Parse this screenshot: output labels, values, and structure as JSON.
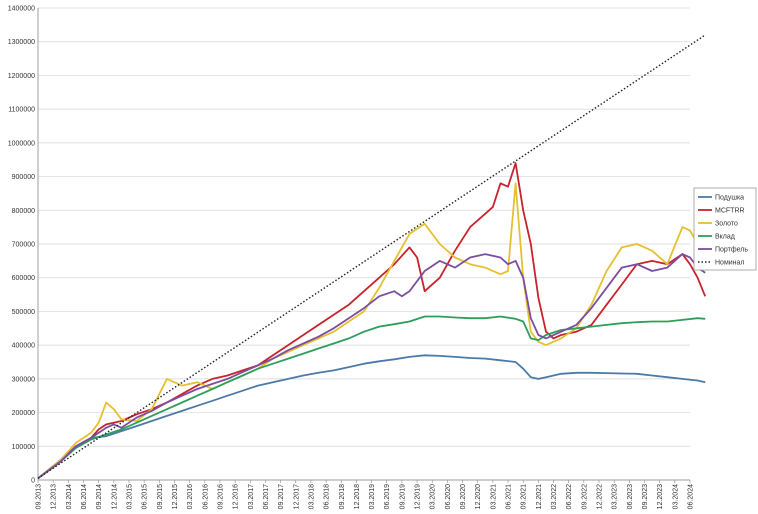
{
  "chart_data": {
    "type": "line",
    "title": "",
    "xlabel": "",
    "ylabel": "",
    "ylim": [
      0,
      1400000
    ],
    "y_ticks": [
      "0",
      "100000",
      "200000",
      "300000",
      "400000",
      "500000",
      "600000",
      "700000",
      "800000",
      "900000",
      "1000000",
      "1100000",
      "1200000",
      "1300000",
      "1400000"
    ],
    "x_ticks": [
      "09.2013",
      "12.2013",
      "03.2014",
      "06.2014",
      "09.2014",
      "12.2014",
      "03.2015",
      "06.2015",
      "09.2015",
      "12.2015",
      "03.2016",
      "06.2016",
      "09.2016",
      "12.2016",
      "03.2017",
      "06.2017",
      "09.2017",
      "12.2017",
      "03.2018",
      "06.2018",
      "09.2018",
      "12.2018",
      "03.2019",
      "06.2019",
      "09.2019",
      "12.2019",
      "03.2020",
      "06.2020",
      "09.2020",
      "12.2020",
      "03.2021",
      "06.2021",
      "09.2021",
      "12.2021",
      "03.2022",
      "06.2022",
      "09.2022",
      "12.2022",
      "03.2023",
      "06.2023",
      "09.2023",
      "12.2023",
      "03.2024",
      "06.2024"
    ],
    "grid": "horizontal",
    "legend_position": "right",
    "series": [
      {
        "name": "Подушка",
        "color": "#4a7ba7",
        "style": "solid",
        "points": [
          [
            0,
            5000
          ],
          [
            3,
            60000
          ],
          [
            5,
            100000
          ],
          [
            7,
            125000
          ],
          [
            9,
            130000
          ],
          [
            11,
            145000
          ],
          [
            13,
            160000
          ],
          [
            15,
            175000
          ],
          [
            17,
            190000
          ],
          [
            19,
            205000
          ],
          [
            21,
            220000
          ],
          [
            23,
            235000
          ],
          [
            25,
            250000
          ],
          [
            27,
            265000
          ],
          [
            29,
            280000
          ],
          [
            31,
            290000
          ],
          [
            33,
            300000
          ],
          [
            35,
            310000
          ],
          [
            37,
            318000
          ],
          [
            39,
            325000
          ],
          [
            41,
            335000
          ],
          [
            43,
            345000
          ],
          [
            45,
            352000
          ],
          [
            47,
            358000
          ],
          [
            49,
            365000
          ],
          [
            51,
            370000
          ],
          [
            53,
            368000
          ],
          [
            55,
            365000
          ],
          [
            57,
            362000
          ],
          [
            59,
            360000
          ],
          [
            61,
            355000
          ],
          [
            63,
            350000
          ],
          [
            64,
            330000
          ],
          [
            65,
            305000
          ],
          [
            66,
            300000
          ],
          [
            67,
            305000
          ],
          [
            69,
            315000
          ],
          [
            71,
            318000
          ],
          [
            73,
            318000
          ],
          [
            75,
            317000
          ],
          [
            77,
            316000
          ],
          [
            79,
            315000
          ],
          [
            81,
            310000
          ],
          [
            83,
            305000
          ],
          [
            85,
            300000
          ],
          [
            87,
            295000
          ],
          [
            88,
            290000
          ]
        ]
      },
      {
        "name": "MCFTRR",
        "color": "#c8232c",
        "style": "solid",
        "points": [
          [
            0,
            5000
          ],
          [
            3,
            55000
          ],
          [
            5,
            100000
          ],
          [
            7,
            125000
          ],
          [
            8,
            150000
          ],
          [
            9,
            165000
          ],
          [
            11,
            175000
          ],
          [
            13,
            195000
          ],
          [
            15,
            210000
          ],
          [
            17,
            230000
          ],
          [
            19,
            255000
          ],
          [
            21,
            280000
          ],
          [
            23,
            300000
          ],
          [
            25,
            310000
          ],
          [
            27,
            325000
          ],
          [
            29,
            340000
          ],
          [
            31,
            370000
          ],
          [
            33,
            400000
          ],
          [
            35,
            430000
          ],
          [
            37,
            460000
          ],
          [
            39,
            490000
          ],
          [
            41,
            520000
          ],
          [
            43,
            560000
          ],
          [
            45,
            600000
          ],
          [
            47,
            640000
          ],
          [
            49,
            690000
          ],
          [
            50,
            660000
          ],
          [
            51,
            560000
          ],
          [
            53,
            600000
          ],
          [
            55,
            680000
          ],
          [
            57,
            750000
          ],
          [
            59,
            790000
          ],
          [
            60,
            810000
          ],
          [
            61,
            880000
          ],
          [
            62,
            870000
          ],
          [
            63,
            940000
          ],
          [
            64,
            800000
          ],
          [
            65,
            700000
          ],
          [
            66,
            540000
          ],
          [
            67,
            440000
          ],
          [
            68,
            420000
          ],
          [
            69,
            430000
          ],
          [
            71,
            440000
          ],
          [
            73,
            460000
          ],
          [
            75,
            520000
          ],
          [
            77,
            580000
          ],
          [
            79,
            640000
          ],
          [
            81,
            650000
          ],
          [
            83,
            640000
          ],
          [
            85,
            670000
          ],
          [
            86,
            640000
          ],
          [
            87,
            600000
          ],
          [
            88,
            545000
          ]
        ]
      },
      {
        "name": "Золото",
        "color": "#e6c02e",
        "style": "solid",
        "points": [
          [
            0,
            5000
          ],
          [
            3,
            60000
          ],
          [
            5,
            110000
          ],
          [
            7,
            140000
          ],
          [
            8,
            170000
          ],
          [
            9,
            230000
          ],
          [
            10,
            210000
          ],
          [
            11,
            180000
          ],
          [
            13,
            175000
          ],
          [
            15,
            210000
          ],
          [
            17,
            300000
          ],
          [
            19,
            280000
          ],
          [
            21,
            290000
          ],
          [
            23,
            270000
          ],
          [
            25,
            290000
          ],
          [
            27,
            310000
          ],
          [
            29,
            330000
          ],
          [
            31,
            360000
          ],
          [
            33,
            380000
          ],
          [
            35,
            400000
          ],
          [
            37,
            420000
          ],
          [
            39,
            440000
          ],
          [
            41,
            470000
          ],
          [
            43,
            500000
          ],
          [
            45,
            570000
          ],
          [
            47,
            650000
          ],
          [
            49,
            730000
          ],
          [
            51,
            760000
          ],
          [
            53,
            700000
          ],
          [
            55,
            660000
          ],
          [
            57,
            640000
          ],
          [
            59,
            630000
          ],
          [
            61,
            610000
          ],
          [
            62,
            620000
          ],
          [
            63,
            880000
          ],
          [
            64,
            600000
          ],
          [
            65,
            440000
          ],
          [
            66,
            410000
          ],
          [
            67,
            400000
          ],
          [
            69,
            420000
          ],
          [
            71,
            450000
          ],
          [
            73,
            520000
          ],
          [
            75,
            620000
          ],
          [
            77,
            690000
          ],
          [
            79,
            700000
          ],
          [
            81,
            680000
          ],
          [
            83,
            640000
          ],
          [
            85,
            750000
          ],
          [
            86,
            740000
          ],
          [
            87,
            700000
          ],
          [
            88,
            730000
          ]
        ]
      },
      {
        "name": "Вклад",
        "color": "#2e9e5b",
        "style": "solid",
        "points": [
          [
            0,
            5000
          ],
          [
            3,
            55000
          ],
          [
            5,
            95000
          ],
          [
            7,
            120000
          ],
          [
            9,
            135000
          ],
          [
            11,
            150000
          ],
          [
            13,
            170000
          ],
          [
            15,
            190000
          ],
          [
            17,
            210000
          ],
          [
            19,
            230000
          ],
          [
            21,
            250000
          ],
          [
            23,
            270000
          ],
          [
            25,
            290000
          ],
          [
            27,
            310000
          ],
          [
            29,
            330000
          ],
          [
            31,
            345000
          ],
          [
            33,
            360000
          ],
          [
            35,
            375000
          ],
          [
            37,
            390000
          ],
          [
            39,
            405000
          ],
          [
            41,
            420000
          ],
          [
            43,
            440000
          ],
          [
            45,
            455000
          ],
          [
            47,
            462000
          ],
          [
            49,
            470000
          ],
          [
            51,
            485000
          ],
          [
            53,
            485000
          ],
          [
            55,
            482000
          ],
          [
            57,
            480000
          ],
          [
            59,
            480000
          ],
          [
            61,
            485000
          ],
          [
            63,
            478000
          ],
          [
            64,
            470000
          ],
          [
            65,
            420000
          ],
          [
            66,
            415000
          ],
          [
            67,
            430000
          ],
          [
            69,
            445000
          ],
          [
            71,
            450000
          ],
          [
            73,
            455000
          ],
          [
            75,
            460000
          ],
          [
            77,
            465000
          ],
          [
            79,
            468000
          ],
          [
            81,
            470000
          ],
          [
            83,
            470000
          ],
          [
            85,
            475000
          ],
          [
            87,
            480000
          ],
          [
            88,
            478000
          ]
        ]
      },
      {
        "name": "Портфель",
        "color": "#7b4ea0",
        "style": "solid",
        "points": [
          [
            0,
            5000
          ],
          [
            3,
            55000
          ],
          [
            5,
            100000
          ],
          [
            7,
            125000
          ],
          [
            9,
            155000
          ],
          [
            10,
            165000
          ],
          [
            11,
            155000
          ],
          [
            13,
            185000
          ],
          [
            15,
            205000
          ],
          [
            17,
            230000
          ],
          [
            19,
            250000
          ],
          [
            21,
            270000
          ],
          [
            23,
            285000
          ],
          [
            25,
            300000
          ],
          [
            27,
            320000
          ],
          [
            29,
            340000
          ],
          [
            31,
            360000
          ],
          [
            33,
            385000
          ],
          [
            35,
            405000
          ],
          [
            37,
            425000
          ],
          [
            39,
            450000
          ],
          [
            41,
            480000
          ],
          [
            43,
            510000
          ],
          [
            45,
            545000
          ],
          [
            47,
            560000
          ],
          [
            48,
            545000
          ],
          [
            49,
            560000
          ],
          [
            51,
            620000
          ],
          [
            53,
            650000
          ],
          [
            55,
            630000
          ],
          [
            57,
            660000
          ],
          [
            59,
            670000
          ],
          [
            61,
            660000
          ],
          [
            62,
            640000
          ],
          [
            63,
            650000
          ],
          [
            64,
            600000
          ],
          [
            65,
            480000
          ],
          [
            66,
            430000
          ],
          [
            67,
            420000
          ],
          [
            69,
            440000
          ],
          [
            71,
            460000
          ],
          [
            73,
            510000
          ],
          [
            75,
            570000
          ],
          [
            77,
            630000
          ],
          [
            79,
            640000
          ],
          [
            81,
            620000
          ],
          [
            83,
            630000
          ],
          [
            85,
            670000
          ],
          [
            86,
            660000
          ],
          [
            87,
            630000
          ],
          [
            88,
            615000
          ]
        ]
      },
      {
        "name": "Номинал",
        "color": "#222222",
        "style": "dotted",
        "points": [
          [
            0,
            5000
          ],
          [
            88,
            1320000
          ]
        ]
      }
    ]
  }
}
